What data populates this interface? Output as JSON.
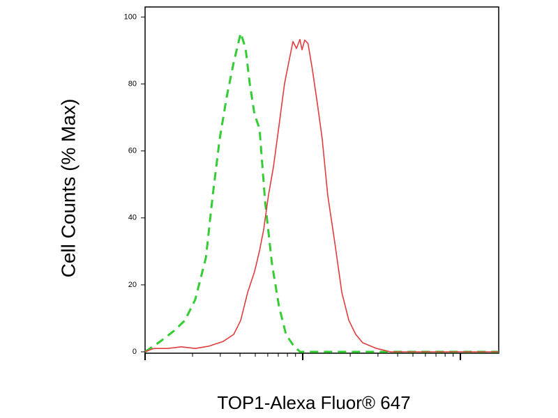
{
  "chart_data": {
    "type": "line",
    "xlabel": "TOP1-Alexa Fluor® 647",
    "ylabel": "Cell Counts (% Max)",
    "xscale": "log",
    "xlim": [
      1,
      175
    ],
    "xticks": [
      1,
      2,
      3,
      4,
      5,
      6,
      7,
      8,
      9,
      10,
      20,
      30,
      40,
      50,
      60,
      70,
      80,
      90,
      100
    ],
    "ylim": [
      0,
      103
    ],
    "yticks": [
      0,
      20,
      40,
      60,
      80,
      100
    ],
    "series": [
      {
        "color": "#33cc33",
        "dash": true,
        "x": [
          1,
          1.25,
          1.53,
          1.79,
          2.08,
          2.43,
          2.69,
          2.97,
          3.29,
          3.65,
          4.04,
          4.34,
          4.61,
          4.95,
          5.32,
          5.77,
          6.39,
          7.08,
          7.83,
          8.67,
          9.6,
          11.8,
          14.4,
          175
        ],
        "values": [
          0,
          3.1,
          6.3,
          9.4,
          15.6,
          28.1,
          46.9,
          63.5,
          76.0,
          86.5,
          95.2,
          90.6,
          80.2,
          70.8,
          66.7,
          44.8,
          26.0,
          13.5,
          5.2,
          2.1,
          0,
          0,
          0,
          0
        ]
      },
      {
        "color": "#e03c3c",
        "dash": false,
        "x": [
          1,
          1.13,
          1.39,
          1.7,
          2.08,
          2.55,
          3.13,
          3.65,
          4.04,
          4.47,
          4.95,
          5.32,
          5.65,
          6.07,
          6.52,
          7.08,
          7.67,
          8.24,
          8.67,
          9.12,
          9.6,
          9.9,
          10.3,
          10.8,
          11.5,
          12.4,
          13.3,
          14.4,
          16.0,
          17.7,
          19.6,
          21.7,
          24.0,
          29.4,
          36.1,
          175
        ],
        "values": [
          0,
          1.0,
          1.0,
          1.5,
          1.0,
          1.7,
          3.1,
          5.2,
          9.4,
          17.7,
          24.0,
          30.2,
          36.5,
          46.9,
          55.2,
          67.7,
          80.2,
          87.5,
          92.7,
          90.6,
          93.3,
          90.2,
          93.1,
          92.1,
          84.4,
          74.0,
          63.5,
          46.9,
          32.3,
          17.7,
          9.4,
          5.2,
          2.7,
          1.0,
          0,
          0
        ]
      }
    ]
  }
}
